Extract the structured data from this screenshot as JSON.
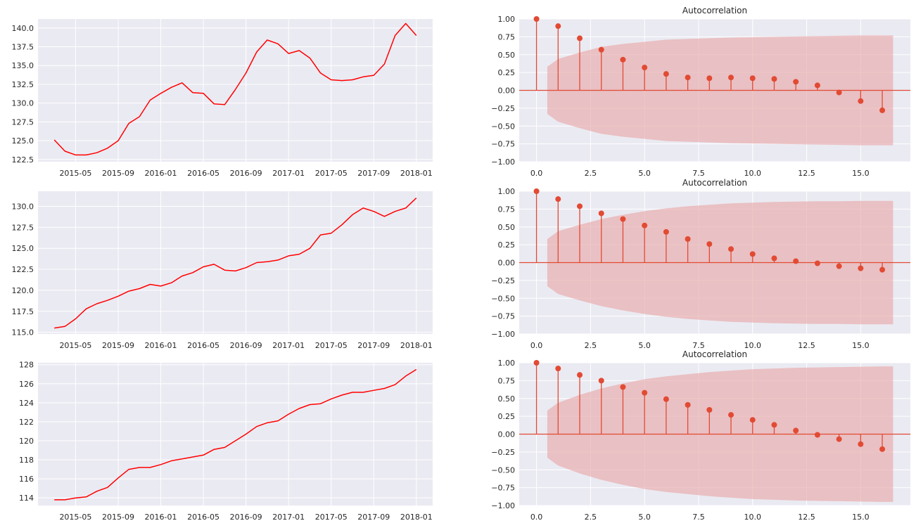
{
  "colors": {
    "background": "#ffffff",
    "axes_bg": "#eaeaf2",
    "grid": "#ffffff",
    "ts_line": "#ff0000",
    "acf_stem": "#e24a33",
    "acf_band": "#e8a4a4",
    "text": "#262626"
  },
  "chart_data": [
    {
      "type": "line",
      "title": "",
      "xlabel": "",
      "ylabel": "",
      "x": [
        "2015-03",
        "2015-04",
        "2015-05",
        "2015-06",
        "2015-07",
        "2015-08",
        "2015-09",
        "2015-10",
        "2015-11",
        "2015-12",
        "2016-01",
        "2016-02",
        "2016-03",
        "2016-04",
        "2016-05",
        "2016-06",
        "2016-07",
        "2016-08",
        "2016-09",
        "2016-10",
        "2016-11",
        "2016-12",
        "2017-01",
        "2017-02",
        "2017-03",
        "2017-04",
        "2017-05",
        "2017-06",
        "2017-07",
        "2017-08",
        "2017-09",
        "2017-10",
        "2017-11",
        "2017-12",
        "2018-01"
      ],
      "values": [
        125.1,
        123.6,
        123.1,
        123.1,
        123.4,
        124.0,
        125.0,
        127.3,
        128.2,
        130.4,
        131.3,
        132.1,
        132.7,
        131.4,
        131.3,
        129.9,
        129.8,
        131.8,
        134.0,
        136.8,
        138.4,
        137.9,
        136.6,
        137.0,
        136.0,
        134.0,
        133.1,
        133.0,
        133.1,
        133.5,
        133.7,
        135.2,
        139.0,
        140.6,
        139.0
      ],
      "x_ticks": [
        "2015-05",
        "2015-09",
        "2016-01",
        "2016-05",
        "2016-09",
        "2017-01",
        "2017-05",
        "2017-09",
        "2018-01"
      ],
      "y_ticks": [
        "122.5",
        "125.0",
        "127.5",
        "130.0",
        "132.5",
        "135.0",
        "137.5",
        "140.0"
      ],
      "ylim": [
        122.2,
        141.2
      ],
      "grid": true
    },
    {
      "type": "bar",
      "title": "Autocorrelation",
      "xlabel": "",
      "ylabel": "",
      "lags": [
        0,
        1,
        2,
        3,
        4,
        5,
        6,
        7,
        8,
        9,
        10,
        11,
        12,
        13,
        14,
        15,
        16
      ],
      "values": [
        1.0,
        0.9,
        0.73,
        0.57,
        0.43,
        0.32,
        0.23,
        0.18,
        0.17,
        0.18,
        0.17,
        0.16,
        0.12,
        0.07,
        -0.03,
        -0.15,
        -0.28
      ],
      "confint_upper": [
        0.33,
        0.44,
        0.53,
        0.61,
        0.65,
        0.68,
        0.71,
        0.72,
        0.73,
        0.74,
        0.745,
        0.75,
        0.755,
        0.76,
        0.765,
        0.77,
        0.77
      ],
      "x_ticks": [
        "0.0",
        "2.5",
        "5.0",
        "7.5",
        "10.0",
        "12.5",
        "15.0"
      ],
      "y_ticks": [
        "1.00",
        "0.75",
        "0.50",
        "0.25",
        "0.00",
        "−0.25",
        "−0.50",
        "−0.75",
        "−1.00"
      ],
      "xlim": [
        -0.8,
        17.3
      ],
      "ylim": [
        -1.0,
        1.0
      ],
      "grid": true
    },
    {
      "type": "line",
      "title": "",
      "xlabel": "",
      "ylabel": "",
      "x": [
        "2015-03",
        "2015-04",
        "2015-05",
        "2015-06",
        "2015-07",
        "2015-08",
        "2015-09",
        "2015-10",
        "2015-11",
        "2015-12",
        "2016-01",
        "2016-02",
        "2016-03",
        "2016-04",
        "2016-05",
        "2016-06",
        "2016-07",
        "2016-08",
        "2016-09",
        "2016-10",
        "2016-11",
        "2016-12",
        "2017-01",
        "2017-02",
        "2017-03",
        "2017-04",
        "2017-05",
        "2017-06",
        "2017-07",
        "2017-08",
        "2017-09",
        "2017-10",
        "2017-11",
        "2017-12",
        "2018-01"
      ],
      "values": [
        115.5,
        115.7,
        116.6,
        117.8,
        118.4,
        118.8,
        119.3,
        119.9,
        120.2,
        120.7,
        120.5,
        120.9,
        121.7,
        122.1,
        122.8,
        123.1,
        122.4,
        122.3,
        122.7,
        123.3,
        123.4,
        123.6,
        124.1,
        124.3,
        125.0,
        126.6,
        126.8,
        127.8,
        129.0,
        129.8,
        129.4,
        128.8,
        129.4,
        129.8,
        131.0
      ],
      "x_ticks": [
        "2015-05",
        "2015-09",
        "2016-01",
        "2016-05",
        "2016-09",
        "2017-01",
        "2017-05",
        "2017-09",
        "2018-01"
      ],
      "y_ticks": [
        "115.0",
        "117.5",
        "120.0",
        "122.5",
        "125.0",
        "127.5",
        "130.0"
      ],
      "ylim": [
        114.8,
        131.8
      ],
      "grid": true
    },
    {
      "type": "bar",
      "title": "Autocorrelation",
      "xlabel": "",
      "ylabel": "",
      "lags": [
        0,
        1,
        2,
        3,
        4,
        5,
        6,
        7,
        8,
        9,
        10,
        11,
        12,
        13,
        14,
        15,
        16
      ],
      "values": [
        1.0,
        0.89,
        0.79,
        0.69,
        0.61,
        0.52,
        0.43,
        0.33,
        0.26,
        0.19,
        0.12,
        0.06,
        0.02,
        -0.01,
        -0.05,
        -0.08,
        -0.1
      ],
      "confint_upper": [
        0.33,
        0.44,
        0.53,
        0.61,
        0.67,
        0.72,
        0.76,
        0.79,
        0.81,
        0.83,
        0.84,
        0.85,
        0.855,
        0.86,
        0.86,
        0.865,
        0.865
      ],
      "x_ticks": [
        "0.0",
        "2.5",
        "5.0",
        "7.5",
        "10.0",
        "12.5",
        "15.0"
      ],
      "y_ticks": [
        "1.00",
        "0.75",
        "0.50",
        "0.25",
        "0.00",
        "−0.25",
        "−0.50",
        "−0.75",
        "−1.00"
      ],
      "xlim": [
        -0.8,
        17.3
      ],
      "ylim": [
        -1.0,
        1.0
      ],
      "grid": true
    },
    {
      "type": "line",
      "title": "",
      "xlabel": "",
      "ylabel": "",
      "x": [
        "2015-03",
        "2015-04",
        "2015-05",
        "2015-06",
        "2015-07",
        "2015-08",
        "2015-09",
        "2015-10",
        "2015-11",
        "2015-12",
        "2016-01",
        "2016-02",
        "2016-03",
        "2016-04",
        "2016-05",
        "2016-06",
        "2016-07",
        "2016-08",
        "2016-09",
        "2016-10",
        "2016-11",
        "2016-12",
        "2017-01",
        "2017-02",
        "2017-03",
        "2017-04",
        "2017-05",
        "2017-06",
        "2017-07",
        "2017-08",
        "2017-09",
        "2017-10",
        "2017-11",
        "2017-12",
        "2018-01"
      ],
      "values": [
        113.8,
        113.8,
        114.0,
        114.1,
        114.7,
        115.1,
        116.1,
        117.0,
        117.2,
        117.2,
        117.5,
        117.9,
        118.1,
        118.3,
        118.5,
        119.1,
        119.3,
        120.0,
        120.7,
        121.5,
        121.9,
        122.1,
        122.8,
        123.4,
        123.8,
        123.9,
        124.4,
        124.8,
        125.1,
        125.1,
        125.3,
        125.5,
        125.9,
        126.8,
        127.5
      ],
      "x_ticks": [
        "2015-05",
        "2015-09",
        "2016-01",
        "2016-05",
        "2016-09",
        "2017-01",
        "2017-05",
        "2017-09",
        "2018-01"
      ],
      "y_ticks": [
        "114",
        "116",
        "118",
        "120",
        "122",
        "124",
        "126",
        "128"
      ],
      "ylim": [
        113.2,
        128.2
      ],
      "grid": true
    },
    {
      "type": "bar",
      "title": "Autocorrelation",
      "xlabel": "",
      "ylabel": "",
      "lags": [
        0,
        1,
        2,
        3,
        4,
        5,
        6,
        7,
        8,
        9,
        10,
        11,
        12,
        13,
        14,
        15,
        16
      ],
      "values": [
        1.0,
        0.92,
        0.83,
        0.75,
        0.66,
        0.58,
        0.49,
        0.41,
        0.34,
        0.27,
        0.2,
        0.13,
        0.05,
        -0.01,
        -0.07,
        -0.14,
        -0.21
      ],
      "confint_upper": [
        0.33,
        0.44,
        0.55,
        0.64,
        0.71,
        0.77,
        0.81,
        0.84,
        0.87,
        0.89,
        0.91,
        0.92,
        0.93,
        0.935,
        0.94,
        0.945,
        0.95
      ],
      "x_ticks": [
        "0.0",
        "2.5",
        "5.0",
        "7.5",
        "10.0",
        "12.5",
        "15.0"
      ],
      "y_ticks": [
        "1.00",
        "0.75",
        "0.50",
        "0.25",
        "0.00",
        "−0.25",
        "−0.50",
        "−0.75",
        "−1.00"
      ],
      "xlim": [
        -0.8,
        17.3
      ],
      "ylim": [
        -1.0,
        1.0
      ],
      "grid": true
    }
  ]
}
